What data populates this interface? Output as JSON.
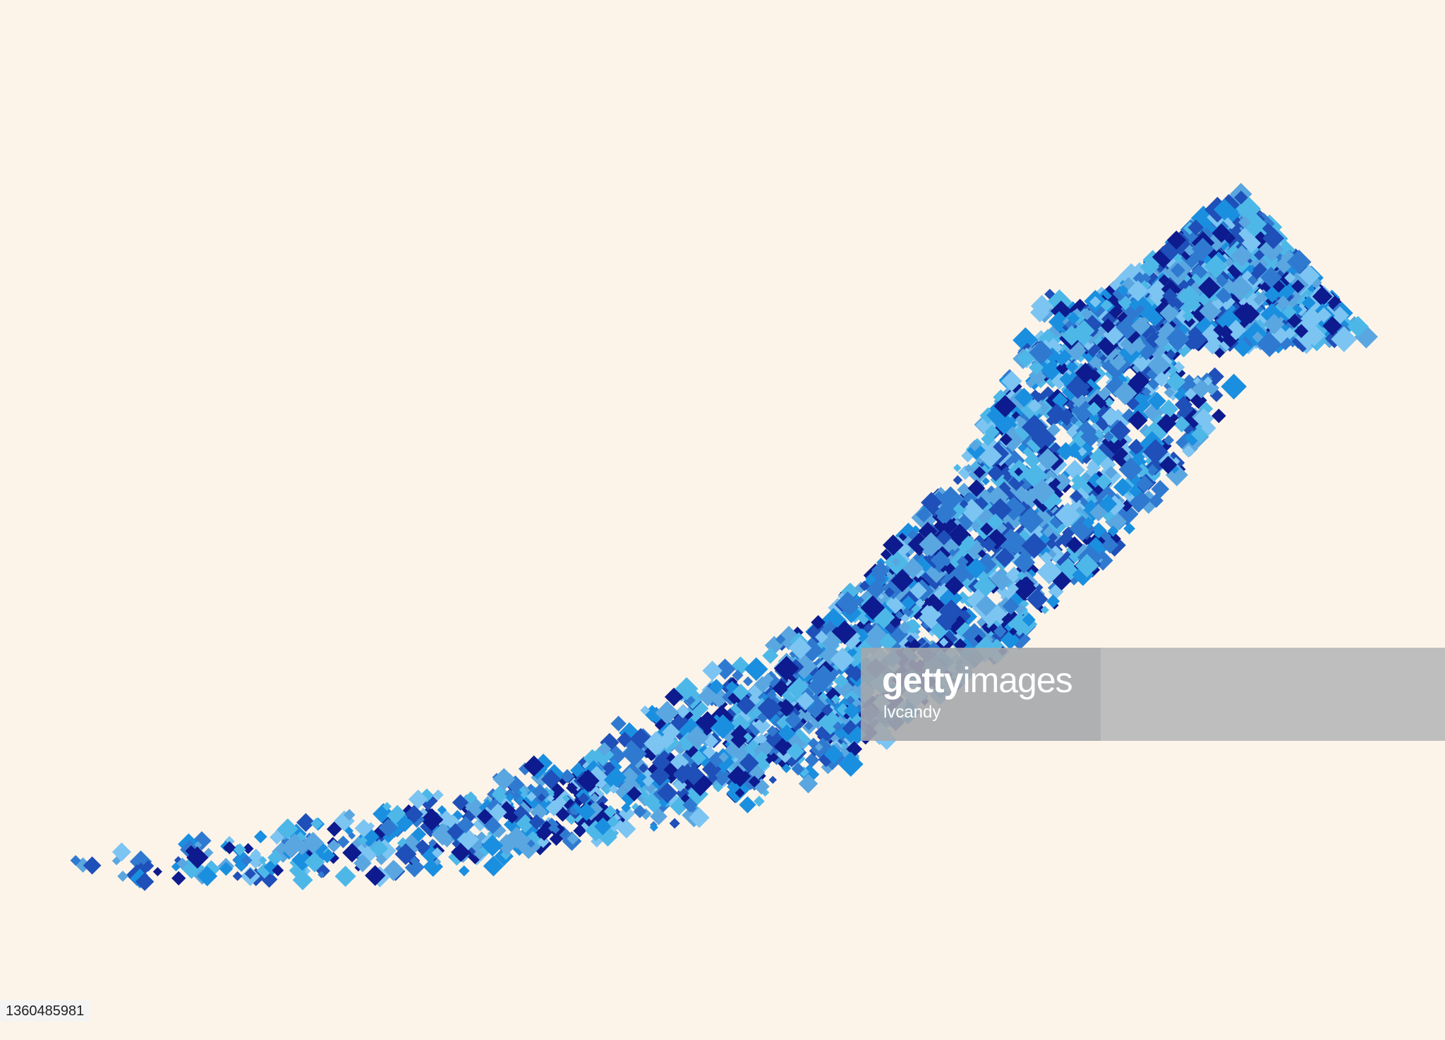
{
  "background_color": "#fdf4e9",
  "artwork": {
    "subject": "rising-arrow-icon",
    "palette": [
      "#0d1b8e",
      "#1f4fb8",
      "#2f7ad0",
      "#1a8fe0",
      "#4db8e8",
      "#7cc4f2",
      "#5aa6e0"
    ]
  },
  "watermark": {
    "brand_bold": "getty",
    "brand_regular": "images",
    "contributor": "lvcandy"
  },
  "image_id": "1360485981"
}
